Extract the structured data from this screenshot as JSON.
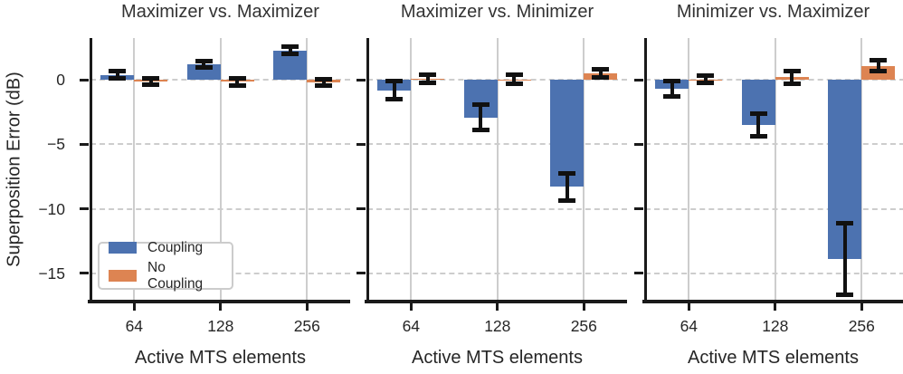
{
  "figure": {
    "ylabel": "Superposition Error (dB)",
    "xlabel": "Active MTS elements",
    "legend": {
      "items": [
        {
          "label": "Coupling",
          "color": "#4C72B0"
        },
        {
          "label": "No Coupling",
          "color": "#DD8452"
        }
      ]
    },
    "colors": {
      "background": "#ffffff",
      "grid": "#cdcdcd",
      "spine": "#1a1a1a",
      "errorbar": "#111111",
      "text": "#262626",
      "title": "#333333",
      "coupling": "#4C72B0",
      "no_coupling": "#DD8452"
    }
  },
  "chart_data": [
    {
      "type": "bar",
      "title": "Maximizer vs. Maximizer",
      "categories": [
        "64",
        "128",
        "256"
      ],
      "xlabel": "Active MTS elements",
      "ylabel": "Superposition Error (dB)",
      "ylim": [
        -17.2,
        3.25
      ],
      "yticks": [
        0,
        -5,
        -10,
        -15
      ],
      "ytick_labels": [
        "0",
        "−5",
        "−10",
        "−15"
      ],
      "grid": true,
      "legend_position": "lower left",
      "series": [
        {
          "name": "Coupling",
          "color": "#4C72B0",
          "values": [
            0.4,
            1.2,
            2.3
          ],
          "errors": [
            0.25,
            0.25,
            0.3
          ]
        },
        {
          "name": "No Coupling",
          "color": "#DD8452",
          "values": [
            -0.1,
            -0.15,
            -0.2
          ],
          "errors": [
            0.25,
            0.3,
            0.25
          ]
        }
      ]
    },
    {
      "type": "bar",
      "title": "Maximizer vs. Minimizer",
      "categories": [
        "64",
        "128",
        "256"
      ],
      "xlabel": "Active MTS elements",
      "ylabel": "Superposition Error (dB)",
      "ylim": [
        -17.2,
        3.25
      ],
      "yticks": [
        0,
        -5,
        -10,
        -15
      ],
      "ytick_labels": [
        "0",
        "−5",
        "−10",
        "−15"
      ],
      "grid": true,
      "legend_position": "none",
      "series": [
        {
          "name": "Coupling",
          "color": "#4C72B0",
          "values": [
            -0.8,
            -2.9,
            -8.3
          ],
          "errors": [
            0.7,
            0.95,
            1.05
          ]
        },
        {
          "name": "No Coupling",
          "color": "#DD8452",
          "values": [
            0.1,
            0.05,
            0.5
          ],
          "errors": [
            0.3,
            0.35,
            0.3
          ]
        }
      ]
    },
    {
      "type": "bar",
      "title": "Minimizer vs. Maximizer",
      "categories": [
        "64",
        "128",
        "256"
      ],
      "xlabel": "Active MTS elements",
      "ylabel": "Superposition Error (dB)",
      "ylim": [
        -17.2,
        3.25
      ],
      "yticks": [
        0,
        -5,
        -10,
        -15
      ],
      "ytick_labels": [
        "0",
        "−5",
        "−10",
        "−15"
      ],
      "grid": true,
      "legend_position": "none",
      "series": [
        {
          "name": "Coupling",
          "color": "#4C72B0",
          "values": [
            -0.7,
            -3.5,
            -13.9
          ],
          "errors": [
            0.6,
            0.85,
            2.8
          ]
        },
        {
          "name": "No Coupling",
          "color": "#DD8452",
          "values": [
            0.05,
            0.2,
            1.1
          ],
          "errors": [
            0.25,
            0.5,
            0.45
          ]
        }
      ]
    }
  ]
}
